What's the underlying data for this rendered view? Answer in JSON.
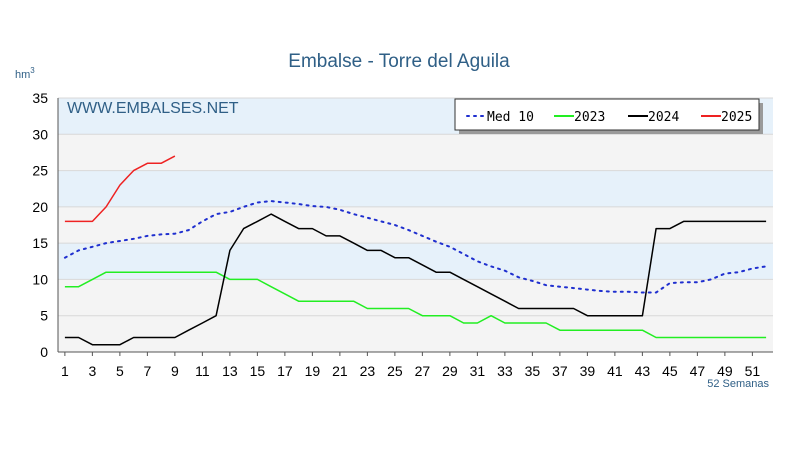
{
  "chart_data": {
    "type": "line",
    "title": "Embalse - Torre del Aguila",
    "ylabel_unit": "hm",
    "ylabel_unit_sup": "3",
    "xlabel": "52 Semanas",
    "watermark": "WWW.EMBALSES.NET",
    "xlim": [
      0.5,
      52.5
    ],
    "ylim": [
      0,
      35
    ],
    "yticks": [
      0,
      5,
      10,
      15,
      20,
      25,
      30,
      35
    ],
    "xticks": [
      1,
      3,
      5,
      7,
      9,
      11,
      13,
      15,
      17,
      19,
      21,
      23,
      25,
      27,
      29,
      31,
      33,
      35,
      37,
      39,
      41,
      43,
      45,
      47,
      49,
      51
    ],
    "bands": [
      [
        10,
        15
      ],
      [
        20,
        25
      ],
      [
        30,
        35
      ]
    ],
    "legend_position": "top-right",
    "series": [
      {
        "name": "Med 10",
        "color": "#1f2fcf",
        "style": "dotted",
        "x": [
          1,
          2,
          3,
          4,
          5,
          6,
          7,
          8,
          9,
          10,
          11,
          12,
          13,
          14,
          15,
          16,
          17,
          18,
          19,
          20,
          21,
          22,
          23,
          24,
          25,
          26,
          27,
          28,
          29,
          30,
          31,
          32,
          33,
          34,
          35,
          36,
          37,
          38,
          39,
          40,
          41,
          42,
          43,
          44,
          45,
          46,
          47,
          48,
          49,
          50,
          51,
          52
        ],
        "y": [
          13,
          14,
          14.5,
          15,
          15.3,
          15.6,
          16,
          16.2,
          16.3,
          16.8,
          18,
          19,
          19.3,
          20,
          20.6,
          20.8,
          20.6,
          20.4,
          20.1,
          20,
          19.6,
          19,
          18.5,
          18,
          17.5,
          16.8,
          16,
          15.2,
          14.5,
          13.5,
          12.5,
          11.8,
          11.2,
          10.3,
          9.8,
          9.2,
          9,
          8.8,
          8.6,
          8.4,
          8.3,
          8.3,
          8.2,
          8.2,
          9.5,
          9.6,
          9.6,
          10,
          10.8,
          11,
          11.5,
          11.8
        ]
      },
      {
        "name": "2023",
        "color": "#22ee22",
        "style": "solid",
        "x": [
          1,
          2,
          3,
          4,
          5,
          6,
          7,
          8,
          9,
          10,
          11,
          12,
          13,
          14,
          15,
          16,
          17,
          18,
          19,
          20,
          21,
          22,
          23,
          24,
          25,
          26,
          27,
          28,
          29,
          30,
          31,
          32,
          33,
          34,
          35,
          36,
          37,
          38,
          39,
          40,
          41,
          42,
          43,
          44,
          45,
          46,
          47,
          48,
          49,
          50,
          51,
          52
        ],
        "y": [
          9,
          9,
          10,
          11,
          11,
          11,
          11,
          11,
          11,
          11,
          11,
          11,
          10,
          10,
          10,
          9,
          8,
          7,
          7,
          7,
          7,
          7,
          6,
          6,
          6,
          6,
          5,
          5,
          5,
          4,
          4,
          5,
          4,
          4,
          4,
          4,
          3,
          3,
          3,
          3,
          3,
          3,
          3,
          2,
          2,
          2,
          2,
          2,
          2,
          2,
          2,
          2
        ]
      },
      {
        "name": "2024",
        "color": "#000000",
        "style": "solid",
        "x": [
          1,
          2,
          3,
          4,
          5,
          6,
          7,
          8,
          9,
          10,
          11,
          12,
          13,
          14,
          15,
          16,
          17,
          18,
          19,
          20,
          21,
          22,
          23,
          24,
          25,
          26,
          27,
          28,
          29,
          30,
          31,
          32,
          33,
          34,
          35,
          36,
          37,
          38,
          39,
          40,
          41,
          42,
          43,
          44,
          45,
          46,
          47,
          48,
          49,
          50,
          51,
          52
        ],
        "y": [
          2,
          2,
          1,
          1,
          1,
          2,
          2,
          2,
          2,
          3,
          4,
          5,
          14,
          17,
          18,
          19,
          18,
          17,
          17,
          16,
          16,
          15,
          14,
          14,
          13,
          13,
          12,
          11,
          11,
          10,
          9,
          8,
          7,
          6,
          6,
          6,
          6,
          6,
          5,
          5,
          5,
          5,
          5,
          17,
          17,
          18,
          18,
          18,
          18,
          18,
          18,
          18
        ]
      },
      {
        "name": "2025",
        "color": "#ee2222",
        "style": "solid",
        "x": [
          1,
          2,
          3,
          4,
          5,
          6,
          7,
          8,
          9
        ],
        "y": [
          18,
          18,
          18,
          20,
          23,
          25,
          26,
          26,
          27
        ]
      }
    ]
  }
}
